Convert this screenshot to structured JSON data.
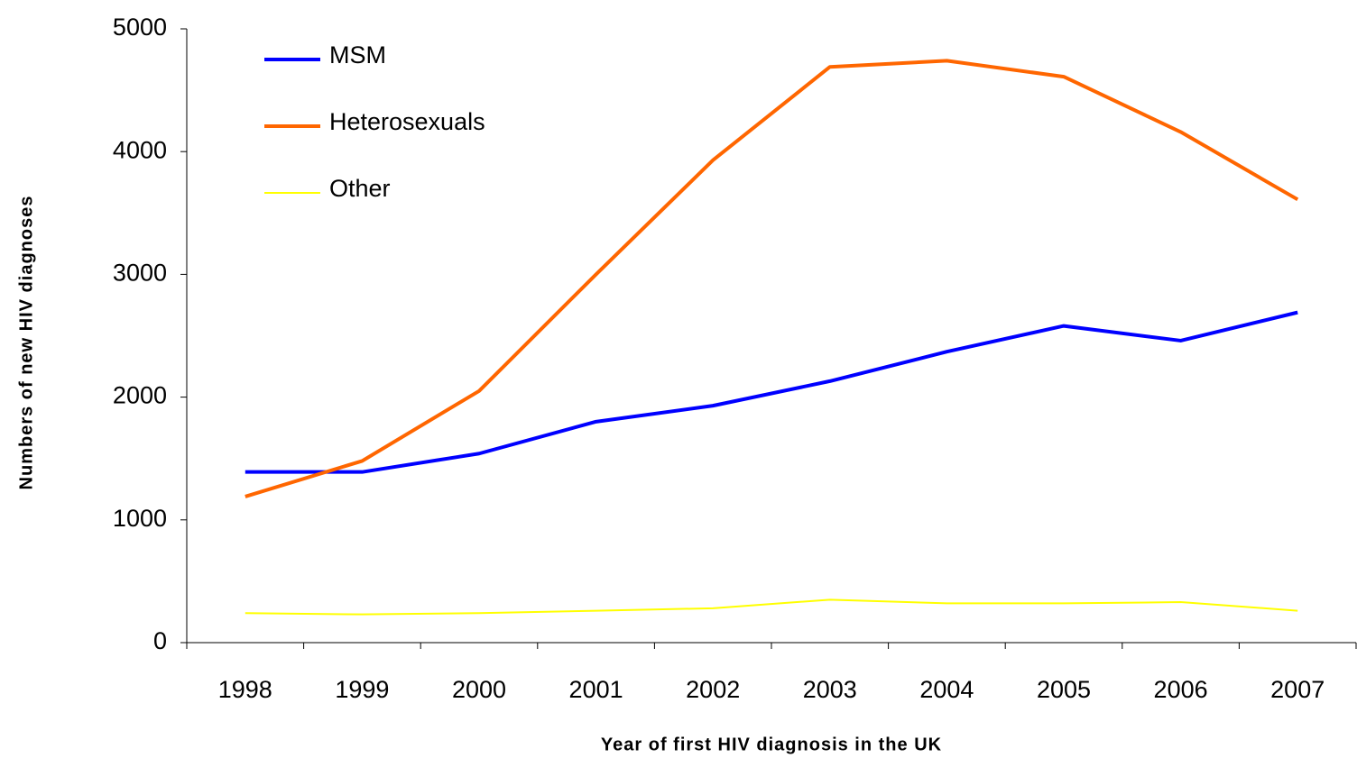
{
  "chart_data": {
    "type": "line",
    "categories": [
      "1998",
      "1999",
      "2000",
      "2001",
      "2002",
      "2003",
      "2004",
      "2005",
      "2006",
      "2007"
    ],
    "series": [
      {
        "name": "MSM",
        "color": "#0000ff",
        "values": [
          1390,
          1390,
          1540,
          1800,
          1930,
          2130,
          2370,
          2580,
          2460,
          2690
        ]
      },
      {
        "name": "Heterosexuals",
        "color": "#ff6600",
        "values": [
          1190,
          1480,
          2050,
          3000,
          3930,
          4690,
          4740,
          4610,
          4160,
          3610
        ]
      },
      {
        "name": "Other",
        "color": "#ffff00",
        "values": [
          240,
          230,
          240,
          260,
          280,
          350,
          320,
          320,
          330,
          260
        ]
      }
    ],
    "ylim": [
      0,
      5000
    ],
    "yticks": [
      0,
      1000,
      2000,
      3000,
      4000,
      5000
    ],
    "y_label": "Numbers of new HIV diagnoses",
    "x_label": "Year of first HIV diagnosis in the UK",
    "legend": "upper left",
    "grid": false
  }
}
